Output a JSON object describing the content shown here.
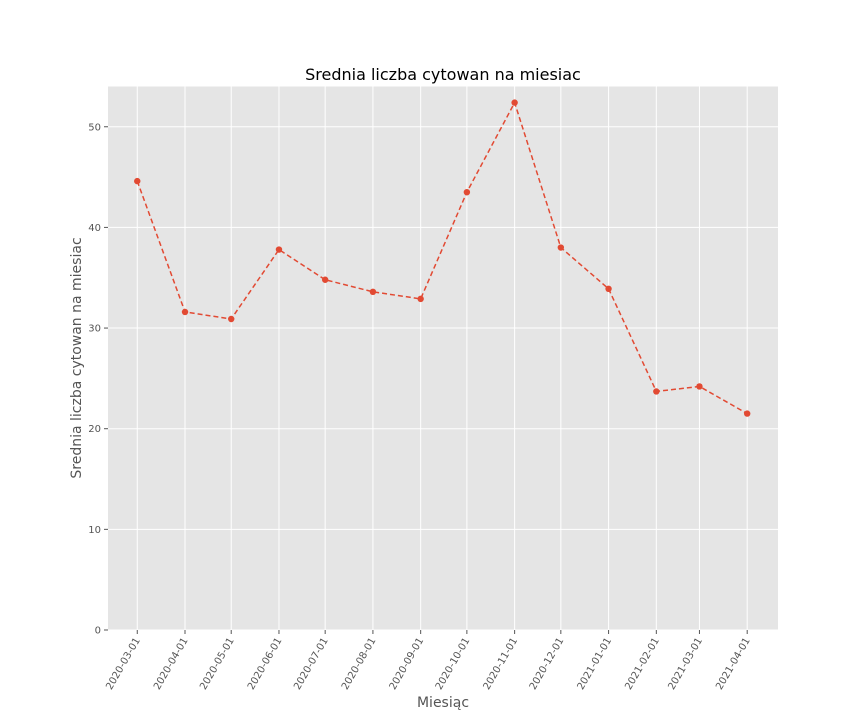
{
  "chart_data": {
    "type": "line",
    "title": "Srednia liczba cytowan na miesiac",
    "xlabel": "Miesiąc",
    "ylabel": "Srednia liczba cytowan na miesiac",
    "categories": [
      "2020-03-01",
      "2020-04-01",
      "2020-05-01",
      "2020-06-01",
      "2020-07-01",
      "2020-08-01",
      "2020-09-01",
      "2020-10-01",
      "2020-11-01",
      "2020-12-01",
      "2021-01-01",
      "2021-02-01",
      "2021-03-01",
      "2021-04-01"
    ],
    "x_dates": [
      "2020-03-01",
      "2020-04-01",
      "2020-05-01",
      "2020-06-01",
      "2020-07-01",
      "2020-08-01",
      "2020-09-01",
      "2020-10-01",
      "2020-11-01",
      "2020-12-01",
      "2021-01-01",
      "2021-02-01",
      "2021-03-01",
      "2021-04-01"
    ],
    "series": [
      {
        "values": [
          44.6,
          31.6,
          30.9,
          37.8,
          34.8,
          33.6,
          32.9,
          43.5,
          52.4,
          38.0,
          33.9,
          23.7,
          24.2,
          21.5
        ]
      }
    ],
    "yticks": [
      0,
      10,
      20,
      30,
      40,
      50
    ],
    "ylim": [
      0,
      54
    ],
    "xlim": [
      "2020-02-11",
      "2021-04-21"
    ],
    "grid": true,
    "line_style": "dashed",
    "marker": "circle",
    "colors": {
      "line": "#E24A33",
      "background": "#E5E5E5",
      "grid": "#FFFFFF"
    }
  }
}
